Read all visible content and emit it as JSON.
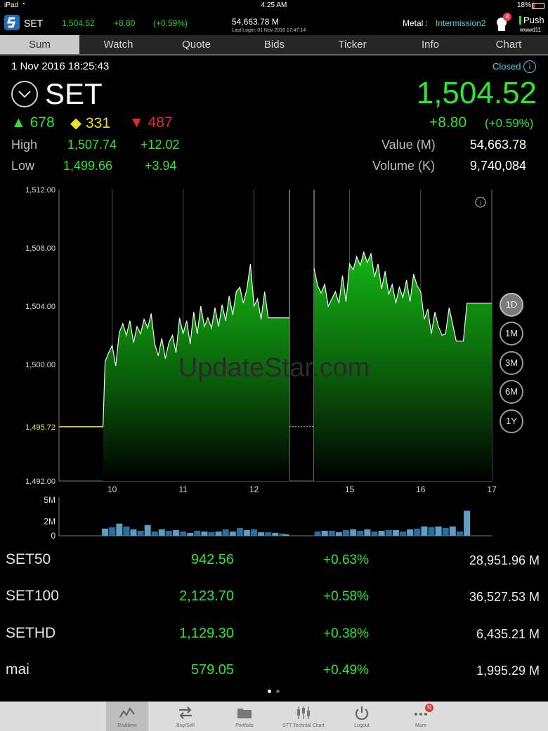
{
  "status": {
    "device": "iPad",
    "time": "4:25 AM",
    "battery": "18%"
  },
  "ticker": {
    "symbol": "SET",
    "price": "1,504.52",
    "change": "+8.80",
    "pct": "(+0.59%)",
    "value": "54,663.78 M",
    "last_login": "Last Login: 01 Nov 2016 17:47:14",
    "metal_label": "Metal :",
    "metal_value": "Intermission2",
    "notif_count": "4",
    "push_label": "Push",
    "user": "wwwd11"
  },
  "tabs": [
    "Sum",
    "Watch",
    "Quote",
    "Bids",
    "Ticker",
    "Info",
    "Chart"
  ],
  "active_tab": "Sum",
  "header": {
    "datetime": "1 Nov 2016 18:25:43",
    "market_status": "Closed",
    "index_name": "SET",
    "last": "1,504.52",
    "change": "+8.80",
    "pct": "(+0.59%)",
    "advances": "678",
    "unchanged": "331",
    "declines": "487",
    "high_label": "High",
    "high": "1,507.74",
    "high_chg": "+12.02",
    "low_label": "Low",
    "low": "1,499.66",
    "low_chg": "+3.94",
    "value_label": "Value (M)",
    "value": "54,663.78",
    "volume_label": "Volume (K)",
    "volume": "9,740,084"
  },
  "chart_data": {
    "type": "area",
    "ylim": [
      1492,
      1512
    ],
    "y_ticks": [
      "1,512.00",
      "1,508.00",
      "1,504.00",
      "1,500.00",
      "1,492.00"
    ],
    "y_tick_values": [
      1512,
      1508,
      1504,
      1500,
      1492
    ],
    "prev_close_label": "1,495.72",
    "prev_close": 1495.72,
    "x_ticks": [
      "10",
      "11",
      "12",
      "15",
      "16",
      "17"
    ],
    "x_tick_hours": [
      10,
      11,
      12,
      15,
      16,
      17
    ],
    "session1": {
      "t": [
        9.6,
        9.87,
        9.9,
        9.95,
        10.0,
        10.05,
        10.1,
        10.15,
        10.2,
        10.25,
        10.3,
        10.35,
        10.4,
        10.45,
        10.5,
        10.55,
        10.6,
        10.65,
        10.7,
        10.75,
        10.8,
        10.85,
        10.9,
        10.95,
        11.0,
        11.05,
        11.1,
        11.15,
        11.2,
        11.25,
        11.3,
        11.35,
        11.4,
        11.45,
        11.5,
        11.55,
        11.6,
        11.65,
        11.7,
        11.75,
        11.8,
        11.85,
        11.9,
        11.95,
        12.0,
        12.05,
        12.1,
        12.15,
        12.2,
        12.25,
        12.3,
        12.35,
        12.4,
        12.45,
        12.5
      ],
      "v": [
        1495.72,
        1495.72,
        1500.2,
        1500.8,
        1501.3,
        1499.9,
        1502.2,
        1502.8,
        1502.0,
        1503.0,
        1501.5,
        1502.6,
        1502.1,
        1503.1,
        1502.5,
        1503.5,
        1501.4,
        1500.6,
        1501.8,
        1500.4,
        1501.5,
        1502.0,
        1500.8,
        1503.2,
        1502.1,
        1503.0,
        1501.4,
        1503.6,
        1502.1,
        1504.0,
        1502.6,
        1503.2,
        1502.5,
        1503.9,
        1502.6,
        1504.1,
        1503.0,
        1504.7,
        1503.4,
        1505.0,
        1505.3,
        1504.2,
        1505.2,
        1506.9,
        1504.0,
        1504.5,
        1503.1,
        1505.0,
        1503.2,
        1503.2,
        1503.2,
        1503.2,
        1503.2,
        1503.2,
        1503.2
      ]
    },
    "session2": {
      "t": [
        14.5,
        14.55,
        14.6,
        14.65,
        14.7,
        14.75,
        14.8,
        14.85,
        14.9,
        14.95,
        15.0,
        15.05,
        15.1,
        15.15,
        15.2,
        15.25,
        15.3,
        15.35,
        15.4,
        15.45,
        15.5,
        15.55,
        15.6,
        15.65,
        15.7,
        15.75,
        15.8,
        15.85,
        15.9,
        15.95,
        16.0,
        16.05,
        16.1,
        16.15,
        16.2,
        16.25,
        16.3,
        16.35,
        16.4,
        16.5,
        16.6,
        16.65,
        17.0
      ],
      "v": [
        1506.6,
        1505.4,
        1504.9,
        1505.5,
        1504.0,
        1504.5,
        1505.0,
        1504.2,
        1506.1,
        1504.3,
        1506.9,
        1506.5,
        1507.4,
        1506.8,
        1507.7,
        1507.0,
        1507.6,
        1506.0,
        1506.9,
        1505.2,
        1506.4,
        1504.8,
        1505.5,
        1504.2,
        1505.3,
        1504.6,
        1505.8,
        1504.3,
        1506.2,
        1505.4,
        1505.0,
        1503.1,
        1503.8,
        1502.1,
        1503.6,
        1502.6,
        1502.0,
        1502.1,
        1503.9,
        1501.6,
        1501.6,
        1504.2,
        1504.2
      ]
    },
    "volume": {
      "label_ticks": [
        "5M",
        "2M",
        "0"
      ],
      "tick_values": [
        5,
        2,
        0
      ],
      "max": 5,
      "bars": [
        {
          "t": 9.9,
          "v": 1.0
        },
        {
          "t": 10.0,
          "v": 1.2
        },
        {
          "t": 10.1,
          "v": 1.7
        },
        {
          "t": 10.2,
          "v": 1.3
        },
        {
          "t": 10.3,
          "v": 0.9
        },
        {
          "t": 10.4,
          "v": 0.7
        },
        {
          "t": 10.5,
          "v": 1.5
        },
        {
          "t": 10.6,
          "v": 0.6
        },
        {
          "t": 10.7,
          "v": 0.9
        },
        {
          "t": 10.8,
          "v": 0.7
        },
        {
          "t": 10.9,
          "v": 0.8
        },
        {
          "t": 11.0,
          "v": 0.6
        },
        {
          "t": 11.1,
          "v": 0.4
        },
        {
          "t": 11.2,
          "v": 0.7
        },
        {
          "t": 11.3,
          "v": 0.6
        },
        {
          "t": 11.4,
          "v": 0.5
        },
        {
          "t": 11.5,
          "v": 0.6
        },
        {
          "t": 11.6,
          "v": 0.9
        },
        {
          "t": 11.7,
          "v": 0.6
        },
        {
          "t": 11.8,
          "v": 1.1
        },
        {
          "t": 11.9,
          "v": 0.8
        },
        {
          "t": 12.0,
          "v": 0.9
        },
        {
          "t": 12.1,
          "v": 0.5
        },
        {
          "t": 12.2,
          "v": 0.5
        },
        {
          "t": 12.3,
          "v": 0.4
        },
        {
          "t": 12.4,
          "v": 0.3
        },
        {
          "t": 12.45,
          "v": 0.2
        },
        {
          "t": 14.55,
          "v": 0.6
        },
        {
          "t": 14.65,
          "v": 0.7
        },
        {
          "t": 14.75,
          "v": 0.7
        },
        {
          "t": 14.85,
          "v": 0.5
        },
        {
          "t": 14.95,
          "v": 0.8
        },
        {
          "t": 15.05,
          "v": 0.9
        },
        {
          "t": 15.15,
          "v": 0.7
        },
        {
          "t": 15.25,
          "v": 0.9
        },
        {
          "t": 15.35,
          "v": 0.6
        },
        {
          "t": 15.45,
          "v": 0.7
        },
        {
          "t": 15.55,
          "v": 0.8
        },
        {
          "t": 15.65,
          "v": 0.8
        },
        {
          "t": 15.75,
          "v": 0.6
        },
        {
          "t": 15.85,
          "v": 0.9
        },
        {
          "t": 15.95,
          "v": 1.0
        },
        {
          "t": 16.05,
          "v": 1.3
        },
        {
          "t": 16.15,
          "v": 1.2
        },
        {
          "t": 16.25,
          "v": 1.3
        },
        {
          "t": 16.35,
          "v": 1.1
        },
        {
          "t": 16.45,
          "v": 1.3
        },
        {
          "t": 16.55,
          "v": 0.6
        },
        {
          "t": 16.65,
          "v": 3.5
        }
      ]
    },
    "watermark": "UpdateStar.com",
    "ranges": [
      "1D",
      "1M",
      "3M",
      "6M",
      "1Y"
    ],
    "active_range": "1D"
  },
  "indices": [
    {
      "name": "SET50",
      "value": "942.56",
      "change": "+0.63%",
      "volume": "28,951.96 M"
    },
    {
      "name": "SET100",
      "value": "2,123.70",
      "change": "+0.58%",
      "volume": "36,527.53 M"
    },
    {
      "name": "SETHD",
      "value": "1,129.30",
      "change": "+0.38%",
      "volume": "6,435.21 M"
    },
    {
      "name": "mai",
      "value": "579.05",
      "change": "+0.49%",
      "volume": "1,995.29 M"
    }
  ],
  "toolbar": [
    {
      "label": "Realtime",
      "icon": "realtime-icon",
      "active": true
    },
    {
      "label": "Buy/Sell",
      "icon": "buy-sell-icon",
      "active": false
    },
    {
      "label": "Portfolio",
      "icon": "folder-icon",
      "active": false
    },
    {
      "label": "STT Technial Chart",
      "icon": "candlestick-icon",
      "active": false
    },
    {
      "label": "Logout",
      "icon": "power-icon",
      "active": false
    },
    {
      "label": "More",
      "icon": "more-icon",
      "active": false,
      "badge": "N"
    }
  ]
}
